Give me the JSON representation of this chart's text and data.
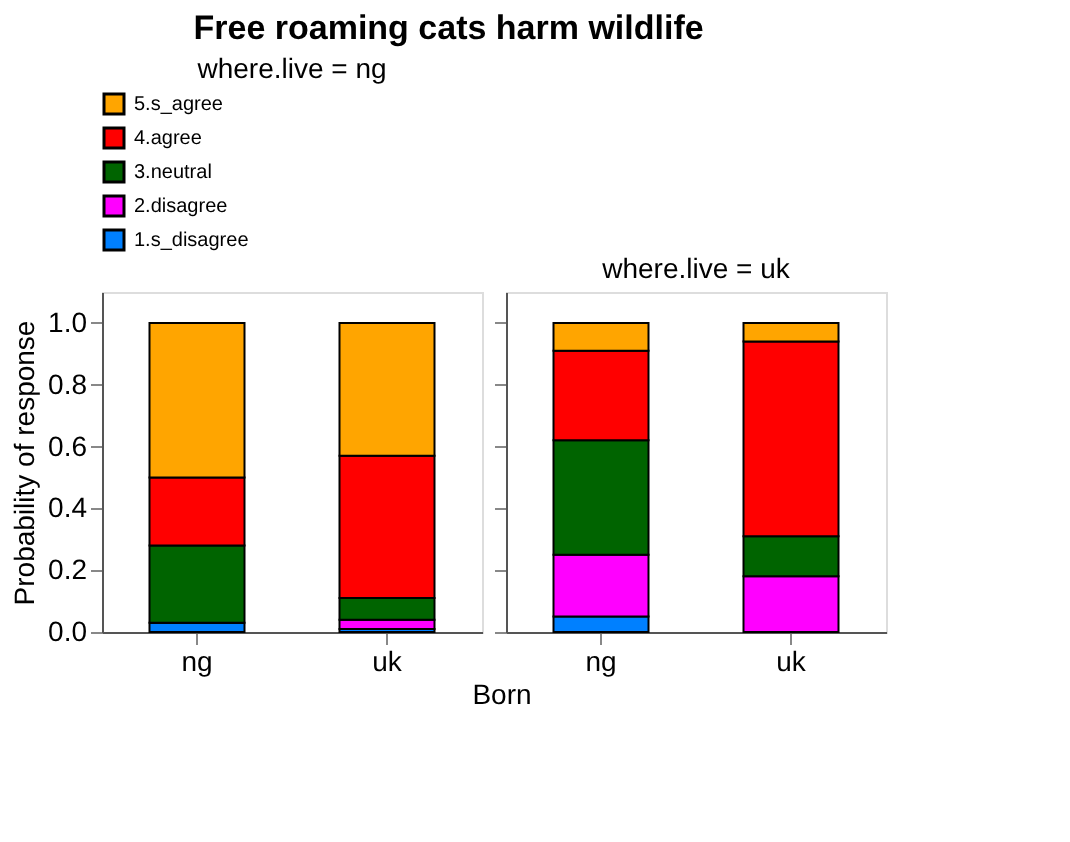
{
  "chart_data": [
    {
      "type": "bar",
      "stacked": true,
      "title": "Free roaming cats harm wildlife",
      "subtitle": "where.live = ng",
      "xlabel": "Born",
      "ylabel": "Probability of response",
      "categories": [
        "ng",
        "uk"
      ],
      "ylim": [
        0,
        1.1
      ],
      "yticks": [
        {
          "value": 0,
          "label": "0.0"
        },
        {
          "value": 0.2,
          "label": "0.2"
        },
        {
          "value": 0.4,
          "label": "0.4"
        },
        {
          "value": 0.6,
          "label": "0.6"
        },
        {
          "value": 0.8,
          "label": "0.8"
        },
        {
          "value": 1,
          "label": "1.0"
        }
      ],
      "legend": "top",
      "grid": false,
      "series": [
        {
          "name": "1.s_disagree",
          "color": "#0080ff",
          "values": [
            0.03,
            0.01
          ]
        },
        {
          "name": "2.disagree",
          "color": "#ff00ff",
          "values": [
            0.0,
            0.03
          ]
        },
        {
          "name": "3.neutral",
          "color": "#006400",
          "values": [
            0.25,
            0.07
          ]
        },
        {
          "name": "4.agree",
          "color": "#ff0000",
          "values": [
            0.22,
            0.46
          ]
        },
        {
          "name": "5.s_agree",
          "color": "#ffa500",
          "values": [
            0.5,
            0.43
          ]
        }
      ]
    },
    {
      "type": "bar",
      "stacked": true,
      "subtitle": "where.live = uk",
      "categories": [
        "ng",
        "uk"
      ],
      "ylim": [
        0,
        1.1
      ],
      "yticks": [
        0,
        0.2,
        0.4,
        0.6,
        0.8,
        1
      ],
      "tick_labels": "x",
      "grid": false,
      "series": [
        {
          "color": "#0080ff",
          "values": [
            0.05,
            0.0
          ]
        },
        {
          "color": "#ff00ff",
          "values": [
            0.2,
            0.18
          ]
        },
        {
          "color": "#006400",
          "values": [
            0.37,
            0.13
          ]
        },
        {
          "color": "#ff0000",
          "values": [
            0.29,
            0.63
          ]
        },
        {
          "color": "#ffa500",
          "values": [
            0.09,
            0.06
          ]
        }
      ]
    }
  ]
}
